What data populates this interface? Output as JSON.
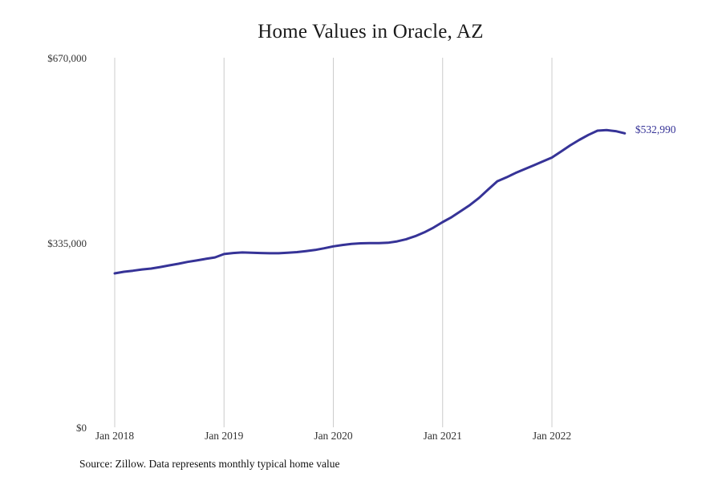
{
  "chart_data": {
    "type": "line",
    "title": "Home Values in Oracle, AZ",
    "source_note": "Source: Zillow. Data represents monthly typical home value",
    "end_label": "$532,990",
    "legend": "none",
    "grid": "vertical-only",
    "ylim": [
      0,
      670000
    ],
    "colors": {
      "line": "#363397",
      "grid": "#cccccc",
      "tick_text": "#333333",
      "end_label_text": "#363397"
    },
    "x": [
      "2018-01",
      "2018-02",
      "2018-03",
      "2018-04",
      "2018-05",
      "2018-06",
      "2018-07",
      "2018-08",
      "2018-09",
      "2018-10",
      "2018-11",
      "2018-12",
      "2019-01",
      "2019-02",
      "2019-03",
      "2019-04",
      "2019-05",
      "2019-06",
      "2019-07",
      "2019-08",
      "2019-09",
      "2019-10",
      "2019-11",
      "2019-12",
      "2020-01",
      "2020-02",
      "2020-03",
      "2020-04",
      "2020-05",
      "2020-06",
      "2020-07",
      "2020-08",
      "2020-09",
      "2020-10",
      "2020-11",
      "2020-12",
      "2021-01",
      "2021-02",
      "2021-03",
      "2021-04",
      "2021-05",
      "2021-06",
      "2021-07",
      "2021-08",
      "2021-09",
      "2021-10",
      "2021-11",
      "2021-12",
      "2022-01",
      "2022-02",
      "2022-03",
      "2022-04",
      "2022-05",
      "2022-06",
      "2022-07",
      "2022-08",
      "2022-09"
    ],
    "values": [
      279100,
      281900,
      283900,
      286200,
      287800,
      290500,
      293600,
      296500,
      299900,
      302500,
      305300,
      308000,
      314000,
      316000,
      317000,
      316500,
      316000,
      315500,
      315500,
      316500,
      317500,
      319500,
      321500,
      324500,
      328000,
      330500,
      332500,
      333500,
      334000,
      333800,
      334500,
      337000,
      341000,
      346500,
      353500,
      362000,
      372000,
      381000,
      392000,
      403000,
      416000,
      431000,
      446000,
      453000,
      461000,
      468000,
      475000,
      482000,
      489000,
      500000,
      511000,
      521000,
      530000,
      537800,
      538800,
      536800,
      532990
    ],
    "x_ticks": [
      {
        "label": "Jan 2018",
        "month_index": 0
      },
      {
        "label": "Jan 2019",
        "month_index": 12
      },
      {
        "label": "Jan 2020",
        "month_index": 24
      },
      {
        "label": "Jan 2021",
        "month_index": 36
      },
      {
        "label": "Jan 2022",
        "month_index": 48
      }
    ],
    "y_ticks": [
      {
        "label": "$0",
        "value": 0
      },
      {
        "label": "$335,000",
        "value": 335000
      },
      {
        "label": "$670,000",
        "value": 670000
      }
    ]
  }
}
